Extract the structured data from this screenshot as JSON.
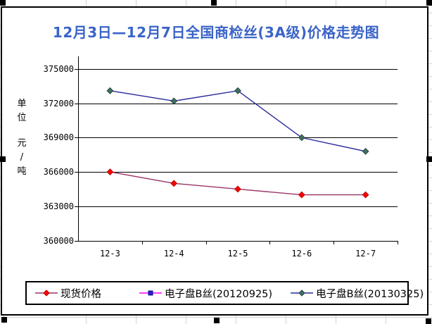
{
  "title": "12月3日—12月7日全国商检丝(3A级)价格走势图",
  "colors": {
    "title_blue": "#3A64C8",
    "spot_line": "#993366",
    "spot_marker": "#FF0000",
    "b20120925_line": "#FF00FF",
    "b20120925_marker": "#2222CC",
    "b20130325_line": "#2A2A9B",
    "b20130325_marker": "#3E7264",
    "gridline": "#000000",
    "chart_border": "#000000"
  },
  "y_axis": {
    "unit_label_line1": "单位",
    "unit_label_line2": "元/吨",
    "tick_labels": [
      "375000",
      "372000",
      "369000",
      "366000",
      "363000",
      "360000"
    ]
  },
  "x_axis": {
    "tick_labels": [
      "12-3",
      "12-4",
      "12-5",
      "12-6",
      "12-7"
    ]
  },
  "chart_data": {
    "type": "line",
    "title": "12月3日—12月7日全国商检丝(3A级)价格走势图",
    "categories": [
      "12-3",
      "12-4",
      "12-5",
      "12-6",
      "12-7"
    ],
    "series": [
      {
        "name": "现货价格",
        "values": [
          366000,
          365000,
          364500,
          364000,
          364000
        ],
        "line_color": "#993366",
        "marker": "diamond",
        "marker_color": "#FF0000",
        "marker_stroke": "#C00000"
      },
      {
        "name": "电子盘B丝(20120925)",
        "values": [],
        "line_color": "#FF00FF",
        "marker": "square",
        "marker_color": "#2222CC",
        "marker_stroke": "#111188"
      },
      {
        "name": "电子盘B丝(20130325)",
        "values": [
          373100,
          372200,
          373100,
          369000,
          367800
        ],
        "line_color": "#2A2A9B",
        "marker": "diamond",
        "marker_color": "#3E7264",
        "marker_stroke": "#26403A"
      }
    ],
    "ylabel": "单位 元/吨",
    "ylim": [
      360000,
      375000
    ],
    "y_major_unit": 3000,
    "grid": true,
    "legend_position": "bottom"
  }
}
